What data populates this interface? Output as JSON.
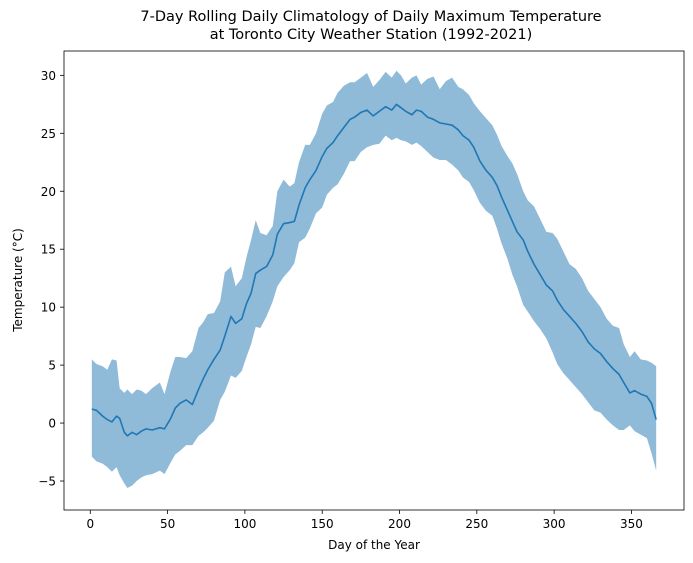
{
  "chart_data": {
    "type": "line",
    "title_line1": "7-Day Rolling Daily Climatology of Daily Maximum Temperature",
    "title_line2": "at Toronto City Weather Station (1992-2021)",
    "xlabel": "Day of the Year",
    "ylabel": "Temperature (°C)",
    "xlim": [
      -17,
      384
    ],
    "ylim": [
      -7.5,
      32.1
    ],
    "xticks": [
      0,
      50,
      100,
      150,
      200,
      250,
      300,
      350
    ],
    "yticks": [
      -5,
      0,
      5,
      10,
      15,
      20,
      25,
      30
    ],
    "ytick_labels": [
      "−5",
      "0",
      "5",
      "10",
      "15",
      "20",
      "25",
      "30"
    ],
    "grid": false,
    "legend": "none",
    "series": [
      {
        "kind": "mean",
        "color": "#1f77b4",
        "x": [
          1,
          4,
          8,
          11,
          14,
          17,
          19,
          22,
          24,
          27,
          30,
          33,
          36,
          40,
          45,
          48,
          52,
          55,
          58,
          62,
          66,
          70,
          73,
          76,
          80,
          84,
          87,
          91,
          94,
          98,
          101,
          104,
          107,
          110,
          114,
          118,
          121,
          125,
          129,
          132,
          135,
          139,
          142,
          146,
          150,
          153,
          157,
          160,
          164,
          168,
          171,
          175,
          179,
          183,
          187,
          191,
          195,
          198,
          201,
          204,
          208,
          211,
          214,
          218,
          222,
          226,
          230,
          234,
          238,
          241,
          245,
          248,
          252,
          256,
          260,
          263,
          266,
          270,
          273,
          276,
          280,
          283,
          287,
          291,
          295,
          299,
          302,
          306,
          310,
          314,
          318,
          322,
          326,
          330,
          334,
          338,
          342,
          345,
          349,
          352,
          356,
          360,
          363,
          366
        ],
        "y": [
          1.2,
          1.1,
          0.6,
          0.3,
          0.1,
          0.6,
          0.4,
          -0.8,
          -1.1,
          -0.8,
          -1.0,
          -0.7,
          -0.5,
          -0.6,
          -0.4,
          -0.5,
          0.4,
          1.3,
          1.7,
          2.0,
          1.6,
          2.9,
          3.8,
          4.6,
          5.5,
          6.3,
          7.5,
          9.2,
          8.6,
          9.0,
          10.3,
          11.2,
          12.9,
          13.2,
          13.5,
          14.5,
          16.3,
          17.2,
          17.3,
          17.4,
          18.8,
          20.3,
          21.0,
          21.8,
          23.0,
          23.7,
          24.2,
          24.8,
          25.5,
          26.2,
          26.4,
          26.8,
          27.0,
          26.5,
          26.9,
          27.3,
          27.0,
          27.5,
          27.2,
          26.9,
          26.6,
          27.0,
          26.9,
          26.4,
          26.2,
          25.9,
          25.8,
          25.7,
          25.3,
          24.8,
          24.4,
          23.8,
          22.6,
          21.8,
          21.2,
          20.5,
          19.5,
          18.3,
          17.4,
          16.5,
          15.8,
          14.8,
          13.7,
          12.8,
          11.9,
          11.4,
          10.6,
          9.8,
          9.2,
          8.6,
          7.9,
          7.0,
          6.4,
          6.0,
          5.3,
          4.7,
          4.2,
          3.5,
          2.6,
          2.8,
          2.5,
          2.3,
          1.7,
          0.3
        ]
      },
      {
        "kind": "band",
        "color": "#1f77b4",
        "opacity": 0.5,
        "x": [
          1,
          4,
          8,
          11,
          14,
          17,
          19,
          22,
          24,
          27,
          30,
          33,
          36,
          40,
          45,
          48,
          52,
          55,
          58,
          62,
          66,
          70,
          73,
          76,
          80,
          84,
          87,
          91,
          94,
          98,
          101,
          104,
          107,
          110,
          114,
          118,
          121,
          125,
          129,
          132,
          135,
          139,
          142,
          146,
          150,
          153,
          157,
          160,
          164,
          168,
          171,
          175,
          179,
          183,
          187,
          191,
          195,
          198,
          201,
          204,
          208,
          211,
          214,
          218,
          222,
          226,
          230,
          234,
          238,
          241,
          245,
          248,
          252,
          256,
          260,
          263,
          266,
          270,
          273,
          276,
          280,
          283,
          287,
          291,
          295,
          299,
          302,
          306,
          310,
          314,
          318,
          322,
          326,
          330,
          334,
          338,
          342,
          345,
          349,
          352,
          356,
          360,
          363,
          366
        ],
        "upper": [
          5.5,
          5.1,
          4.9,
          4.6,
          5.5,
          5.4,
          3.0,
          2.6,
          2.9,
          2.5,
          2.9,
          2.8,
          2.5,
          3.0,
          3.5,
          2.5,
          4.5,
          5.7,
          5.7,
          5.6,
          6.2,
          8.2,
          8.7,
          9.4,
          9.5,
          10.5,
          13.0,
          13.5,
          11.8,
          12.5,
          14.3,
          15.8,
          17.5,
          16.4,
          16.2,
          17.0,
          20.0,
          21.0,
          20.4,
          20.7,
          22.5,
          24.0,
          24.0,
          25.0,
          26.7,
          27.4,
          27.7,
          28.5,
          29.1,
          29.4,
          29.4,
          29.8,
          30.2,
          29.0,
          29.6,
          30.3,
          29.8,
          30.4,
          30.0,
          29.3,
          29.8,
          30.0,
          29.2,
          29.7,
          29.9,
          28.8,
          29.5,
          29.8,
          29.0,
          28.8,
          28.3,
          27.6,
          26.9,
          26.3,
          25.7,
          24.9,
          23.9,
          23.0,
          22.4,
          21.5,
          20.0,
          19.2,
          18.7,
          17.6,
          16.5,
          16.4,
          15.9,
          14.8,
          13.7,
          13.3,
          12.5,
          11.4,
          10.7,
          10.0,
          9.0,
          8.4,
          8.2,
          6.8,
          5.7,
          6.2,
          5.5,
          5.4,
          5.2,
          4.9
        ],
        "lower": [
          -2.9,
          -3.3,
          -3.5,
          -3.8,
          -4.2,
          -3.8,
          -4.5,
          -5.2,
          -5.6,
          -5.4,
          -5.0,
          -4.7,
          -4.5,
          -4.4,
          -4.1,
          -4.4,
          -3.4,
          -2.7,
          -2.4,
          -1.9,
          -1.9,
          -1.1,
          -0.8,
          -0.4,
          0.2,
          2.0,
          2.7,
          4.1,
          3.9,
          4.5,
          5.7,
          6.8,
          8.3,
          8.2,
          9.2,
          10.5,
          11.8,
          12.6,
          13.2,
          13.8,
          15.6,
          16.0,
          16.8,
          18.1,
          18.6,
          19.7,
          20.3,
          20.6,
          21.5,
          22.6,
          22.6,
          23.4,
          23.8,
          24.0,
          24.1,
          24.8,
          24.4,
          24.6,
          24.4,
          24.3,
          24.0,
          24.2,
          23.9,
          23.4,
          22.9,
          22.7,
          22.7,
          22.3,
          21.8,
          21.2,
          20.8,
          20.1,
          19.0,
          18.3,
          17.9,
          16.8,
          15.5,
          14.1,
          12.8,
          11.8,
          10.2,
          9.6,
          8.8,
          8.1,
          7.3,
          6.1,
          5.1,
          4.3,
          3.7,
          3.1,
          2.5,
          1.8,
          1.1,
          0.9,
          0.3,
          -0.2,
          -0.6,
          -0.6,
          -0.2,
          -0.7,
          -1.0,
          -1.3,
          -2.6,
          -4.1
        ]
      }
    ]
  }
}
